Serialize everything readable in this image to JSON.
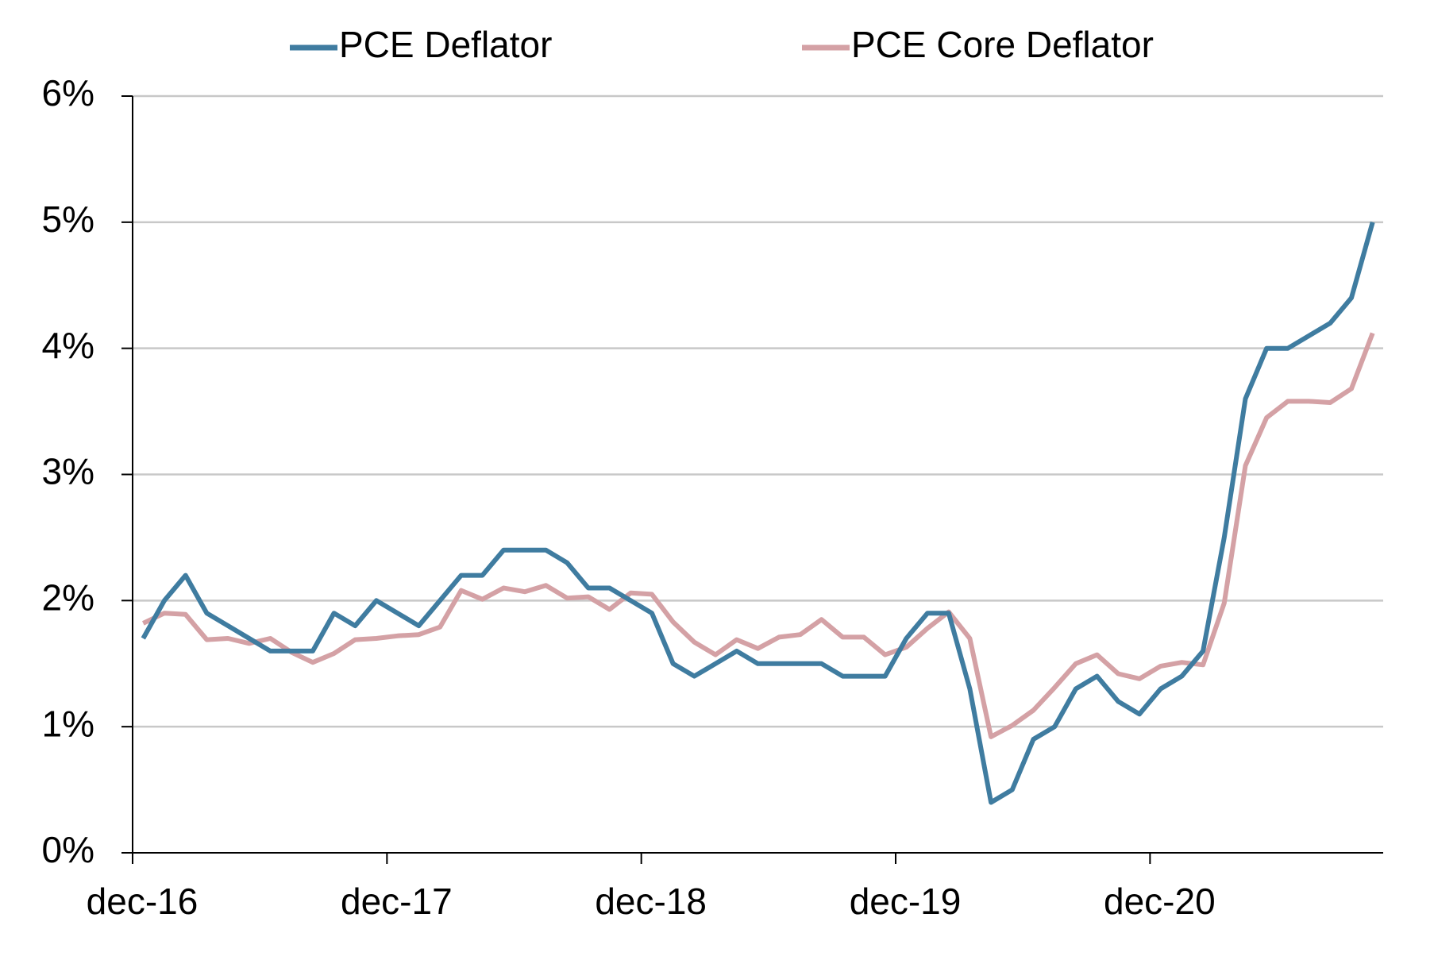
{
  "chart_data": {
    "type": "line",
    "categories": [
      "dec-16",
      null,
      null,
      null,
      null,
      null,
      null,
      null,
      null,
      null,
      null,
      null,
      "dec-17",
      null,
      null,
      null,
      null,
      null,
      null,
      null,
      null,
      null,
      null,
      null,
      "dec-18",
      null,
      null,
      null,
      null,
      null,
      null,
      null,
      null,
      null,
      null,
      null,
      "dec-19",
      null,
      null,
      null,
      null,
      null,
      null,
      null,
      null,
      null,
      null,
      null,
      "dec-20",
      null,
      null,
      null,
      null,
      null,
      null,
      null,
      null,
      null,
      null
    ],
    "series": [
      {
        "name": "PCE Deflator",
        "color": "#3f7ca0",
        "values": [
          1.7,
          2.0,
          2.2,
          1.9,
          1.8,
          1.7,
          1.6,
          1.6,
          1.6,
          1.9,
          1.8,
          2.0,
          1.9,
          1.8,
          2.0,
          2.2,
          2.2,
          2.4,
          2.4,
          2.4,
          2.3,
          2.1,
          2.1,
          2.0,
          1.9,
          1.5,
          1.4,
          1.5,
          1.6,
          1.5,
          1.5,
          1.5,
          1.5,
          1.4,
          1.4,
          1.4,
          1.7,
          1.9,
          1.9,
          1.3,
          0.4,
          0.5,
          0.9,
          1.0,
          1.3,
          1.4,
          1.2,
          1.1,
          1.3,
          1.4,
          1.6,
          2.5,
          3.6,
          4.0,
          4.0,
          4.1,
          4.2,
          4.4,
          5.0
        ]
      },
      {
        "name": "PCE Core Deflator",
        "color": "#d4a1a5",
        "values": [
          1.82,
          1.9,
          1.89,
          1.69,
          1.7,
          1.66,
          1.7,
          1.59,
          1.51,
          1.58,
          1.69,
          1.7,
          1.72,
          1.73,
          1.79,
          2.08,
          2.01,
          2.1,
          2.07,
          2.12,
          2.02,
          2.03,
          1.93,
          2.06,
          2.05,
          1.83,
          1.67,
          1.57,
          1.69,
          1.62,
          1.71,
          1.73,
          1.85,
          1.71,
          1.71,
          1.57,
          1.63,
          1.78,
          1.91,
          1.7,
          0.92,
          1.01,
          1.13,
          1.31,
          1.5,
          1.57,
          1.42,
          1.38,
          1.48,
          1.51,
          1.49,
          1.98,
          3.07,
          3.45,
          3.58,
          3.58,
          3.57,
          3.68,
          4.12
        ]
      }
    ],
    "ylim": [
      0,
      6
    ],
    "yticks": [
      {
        "value": 0,
        "label": "0%"
      },
      {
        "value": 1,
        "label": "1%"
      },
      {
        "value": 2,
        "label": "2%"
      },
      {
        "value": 3,
        "label": "3%"
      },
      {
        "value": 4,
        "label": "4%"
      },
      {
        "value": 5,
        "label": "5%"
      },
      {
        "value": 6,
        "label": "6%"
      }
    ],
    "grid": true,
    "legend": "top"
  }
}
